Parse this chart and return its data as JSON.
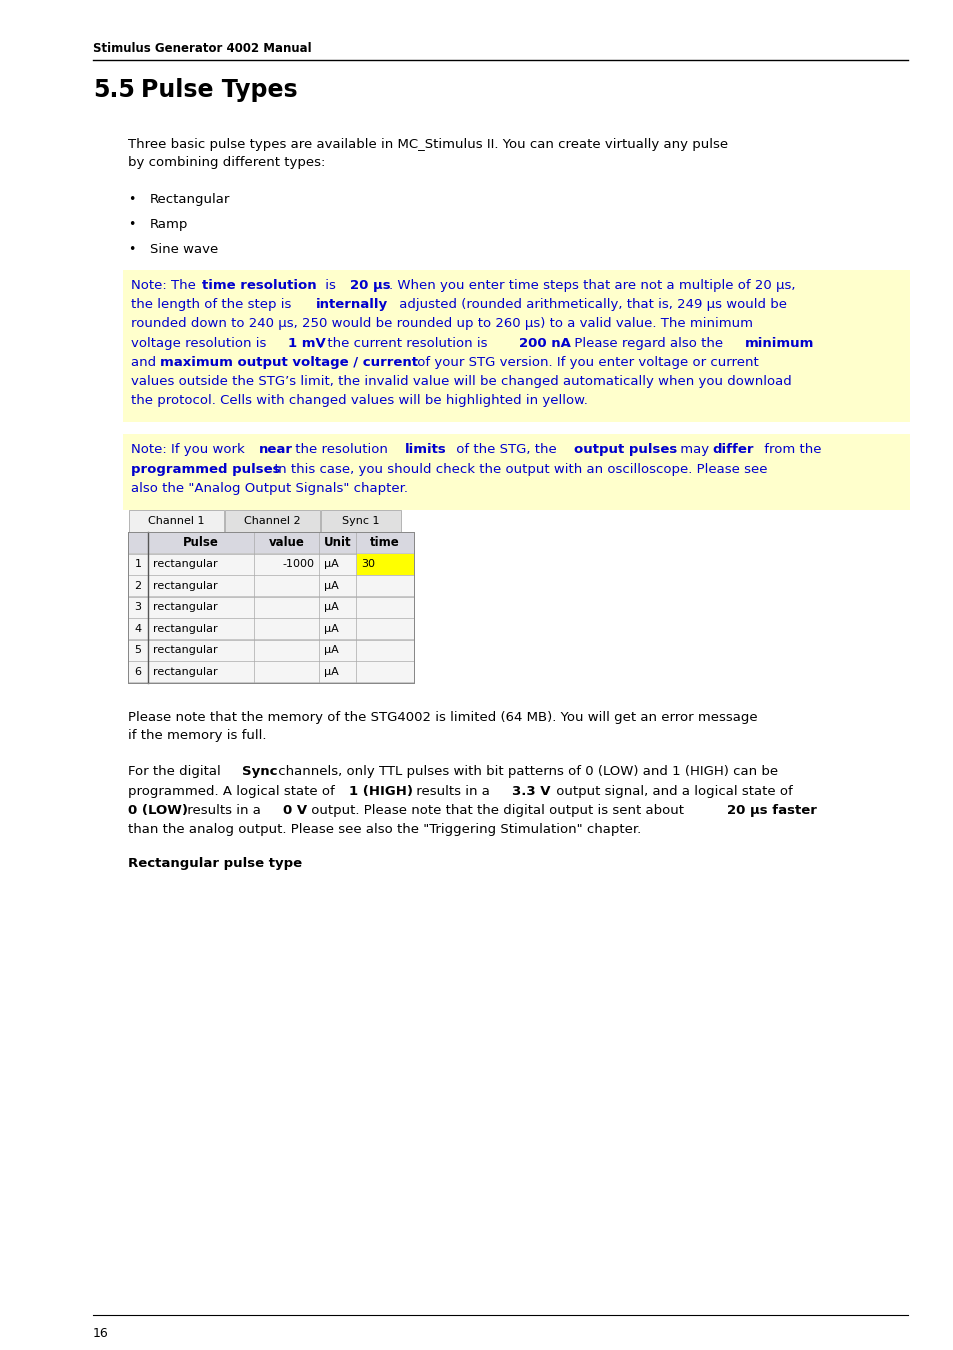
{
  "header_text": "Stimulus Generator 4002 Manual",
  "section_number": "5.5",
  "section_title": "Pulse Types",
  "intro_text": "Three basic pulse types are available in MC_Stimulus II. You can create virtually any pulse\nby combining different types:",
  "bullet_items": [
    "Rectangular",
    "Ramp",
    "Sine wave"
  ],
  "note1_lines": [
    [
      [
        "normal",
        "Note: The "
      ],
      [
        "bold",
        "time resolution"
      ],
      [
        "normal",
        " is "
      ],
      [
        "bold",
        "20 μs"
      ],
      [
        "normal",
        ". When you enter time steps that are not a multiple of 20 μs,"
      ]
    ],
    [
      [
        "normal",
        "the length of the step is "
      ],
      [
        "bold",
        "internally"
      ],
      [
        "normal",
        " adjusted (rounded arithmetically, that is, 249 μs would be"
      ]
    ],
    [
      [
        "normal",
        "rounded down to 240 μs, 250 would be rounded up to 260 μs) to a valid value. The minimum"
      ]
    ],
    [
      [
        "normal",
        "voltage resolution is "
      ],
      [
        "bold",
        "1 mV"
      ],
      [
        "normal",
        ", the current resolution is "
      ],
      [
        "bold",
        "200 nA"
      ],
      [
        "normal",
        ". Please regard also the "
      ],
      [
        "bold",
        "minimum"
      ]
    ],
    [
      [
        "normal",
        "and "
      ],
      [
        "bold",
        "maximum output voltage / current"
      ],
      [
        "normal",
        " of your STG version. If you enter voltage or current"
      ]
    ],
    [
      [
        "normal",
        "values outside the STG’s limit, the invalid value will be changed automatically when you download"
      ]
    ],
    [
      [
        "normal",
        "the protocol. Cells with changed values will be highlighted in yellow."
      ]
    ]
  ],
  "note2_lines": [
    [
      [
        "normal",
        "Note: If you work "
      ],
      [
        "bold",
        "near"
      ],
      [
        "normal",
        " the resolution "
      ],
      [
        "bold",
        "limits"
      ],
      [
        "normal",
        " of the STG, the "
      ],
      [
        "bold",
        "output pulses"
      ],
      [
        "normal",
        " may "
      ],
      [
        "bold",
        "differ"
      ],
      [
        "normal",
        " from the"
      ]
    ],
    [
      [
        "bold",
        "programmed pulses"
      ],
      [
        "normal",
        ". In this case, you should check the output with an oscilloscope. Please see"
      ]
    ],
    [
      [
        "normal",
        "also the \"Analog Output Signals\" chapter."
      ]
    ]
  ],
  "tab_channels": [
    "Channel 1",
    "Channel 2",
    "Sync 1"
  ],
  "tab_headers": [
    "",
    "Pulse",
    "value",
    "Unit",
    "time"
  ],
  "tab_rows": [
    [
      "1",
      "rectangular",
      "-1000",
      "μA",
      "30"
    ],
    [
      "2",
      "rectangular",
      "",
      "μA",
      ""
    ],
    [
      "3",
      "rectangular",
      "",
      "μA",
      ""
    ],
    [
      "4",
      "rectangular",
      "",
      "μA",
      ""
    ],
    [
      "5",
      "rectangular",
      "",
      "μA",
      ""
    ],
    [
      "6",
      "rectangular",
      "",
      "μA",
      ""
    ]
  ],
  "highlight_cell": [
    0,
    4
  ],
  "note_bg_color": "#ffffcc",
  "note_text_color": "#0000cc",
  "highlight_color": "#ffff00",
  "body_text_below": "Please note that the memory of the STG4002 is limited (64 MB). You will get an error message\nif the memory is full.",
  "body_text_below2_lines": [
    [
      [
        "normal",
        "For the digital "
      ],
      [
        "bold",
        "Sync"
      ],
      [
        "normal",
        " channels, only TTL pulses with bit patterns of 0 (LOW) and 1 (HIGH) can be"
      ]
    ],
    [
      [
        "normal",
        "programmed. A logical state of "
      ],
      [
        "bold",
        "1 (HIGH)"
      ],
      [
        "normal",
        " results in a "
      ],
      [
        "bold",
        "3.3 V"
      ],
      [
        "normal",
        " output signal, and a logical state of"
      ]
    ],
    [
      [
        "bold",
        "0 (LOW)"
      ],
      [
        "normal",
        " results in a "
      ],
      [
        "bold",
        "0 V"
      ],
      [
        "normal",
        " output. Please note that the digital output is sent about "
      ],
      [
        "bold",
        "20 μs faster"
      ]
    ],
    [
      [
        "normal",
        "than the analog output. Please see also the \"Triggering Stimulation\" chapter."
      ]
    ]
  ],
  "rect_pulse_label": "Rectangular pulse type",
  "footer_text": "16",
  "bg_color": "#ffffff",
  "text_color": "#000000",
  "page_width": 9.54,
  "page_height": 13.5
}
